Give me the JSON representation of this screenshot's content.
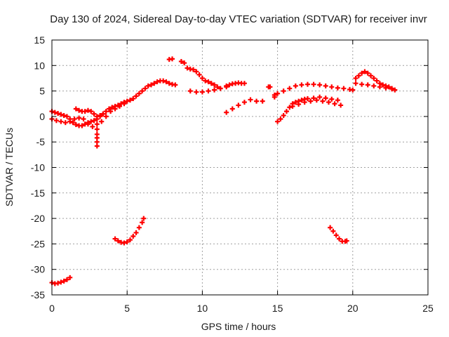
{
  "chart_data": {
    "type": "scatter",
    "title": "Day 130 of 2024, Sidereal Day-to-day VTEC variation (SDTVAR) for receiver invr",
    "xlabel": "GPS time / hours",
    "ylabel": "SDTVAR / TECUs",
    "xlim": [
      0,
      25
    ],
    "ylim": [
      -35,
      15
    ],
    "xticks": [
      0,
      5,
      10,
      15,
      20,
      25
    ],
    "yticks": [
      15,
      10,
      5,
      0,
      -5,
      -10,
      -15,
      -20,
      -25,
      -30,
      -35
    ],
    "grid": true,
    "marker": "+",
    "color": "#ff0000",
    "series": [
      {
        "name": "SDTVAR",
        "x": [
          0.0,
          0.2,
          0.4,
          0.6,
          0.8,
          1.0,
          1.2,
          1.4,
          1.6,
          1.8,
          2.0,
          2.2,
          2.4,
          2.6,
          2.8,
          3.0,
          3.2,
          3.4,
          3.6,
          3.8,
          4.0,
          4.2,
          4.4,
          4.6,
          4.8,
          5.0,
          5.2,
          5.4,
          5.6,
          5.8,
          6.0,
          6.2,
          6.4,
          6.6,
          6.8,
          7.0,
          7.2,
          7.4,
          7.6,
          7.8,
          8.0,
          8.2,
          0.0,
          0.3,
          0.6,
          0.9,
          1.2,
          1.5,
          1.8,
          2.1,
          2.4,
          2.7,
          3.0,
          3.3,
          3.6,
          3.9,
          4.2,
          4.5,
          4.8,
          1.6,
          1.8,
          2.0,
          2.2,
          2.4,
          2.6,
          2.8,
          3.0,
          3.2,
          3.4,
          3.0,
          3.0,
          3.0,
          3.0,
          3.0,
          7.8,
          8.0,
          8.6,
          8.8,
          9.0,
          9.2,
          9.4,
          9.6,
          9.8,
          10.0,
          10.2,
          10.4,
          10.6,
          10.8,
          11.0,
          11.2,
          9.2,
          9.6,
          10.0,
          10.4,
          10.8,
          11.2,
          11.6,
          11.6,
          11.8,
          12.0,
          12.2,
          12.4,
          12.6,
          12.8,
          11.6,
          12.0,
          12.4,
          12.8,
          13.2,
          13.6,
          14.0,
          14.4,
          14.5,
          14.8,
          14.8,
          15.0,
          15.0,
          15.2,
          15.4,
          15.6,
          15.8,
          16.0,
          16.2,
          16.4,
          16.6,
          16.8,
          17.0,
          17.4,
          17.8,
          18.2,
          18.6,
          19.0,
          15.4,
          15.8,
          16.2,
          16.6,
          17.0,
          17.4,
          17.8,
          18.2,
          18.6,
          19.0,
          19.4,
          19.8,
          20.0,
          16.0,
          16.4,
          16.8,
          17.2,
          17.6,
          18.0,
          18.4,
          18.8,
          19.2,
          20.2,
          20.4,
          20.6,
          20.8,
          21.0,
          21.2,
          21.4,
          21.6,
          21.8,
          22.0,
          22.2,
          22.4,
          22.6,
          22.8,
          20.2,
          20.6,
          21.0,
          21.4,
          21.8,
          22.2,
          22.6,
          0.0,
          0.2,
          0.4,
          0.6,
          0.8,
          1.0,
          1.2,
          4.2,
          4.4,
          4.6,
          4.8,
          5.0,
          5.2,
          5.4,
          5.6,
          5.8,
          6.0,
          6.1,
          18.5,
          18.7,
          18.9,
          19.1,
          19.3,
          19.5,
          19.6
        ],
        "y": [
          1.0,
          0.8,
          0.6,
          0.4,
          0.2,
          0.0,
          -0.5,
          -1.2,
          -1.6,
          -1.8,
          -1.8,
          -1.5,
          -1.2,
          -1.0,
          -0.8,
          -0.5,
          0.0,
          0.5,
          1.0,
          1.5,
          1.8,
          2.0,
          2.2,
          2.5,
          2.8,
          3.0,
          3.2,
          3.5,
          4.0,
          4.5,
          5.0,
          5.5,
          6.0,
          6.2,
          6.5,
          6.8,
          7.0,
          7.0,
          6.8,
          6.5,
          6.3,
          6.2,
          -0.5,
          -0.8,
          -1.0,
          -1.2,
          -1.0,
          -0.5,
          -0.3,
          -0.5,
          -1.5,
          -2.0,
          -1.5,
          -1.0,
          0.0,
          1.0,
          1.5,
          2.0,
          2.5,
          1.5,
          1.2,
          1.0,
          1.0,
          1.2,
          1.0,
          0.5,
          0.0,
          0.2,
          0.5,
          -2.5,
          -3.5,
          -4.2,
          -5.0,
          -5.8,
          11.2,
          11.3,
          10.8,
          10.5,
          9.5,
          9.3,
          9.2,
          8.8,
          8.2,
          7.5,
          7.0,
          6.8,
          6.5,
          6.2,
          5.8,
          5.5,
          5.0,
          4.8,
          4.8,
          5.0,
          5.2,
          5.5,
          5.8,
          6.0,
          6.2,
          6.4,
          6.5,
          6.6,
          6.5,
          6.5,
          0.8,
          1.5,
          2.2,
          2.8,
          3.3,
          3.0,
          3.0,
          5.8,
          5.8,
          4.2,
          3.8,
          4.5,
          -1.0,
          -0.5,
          0.2,
          1.0,
          1.8,
          2.5,
          2.8,
          3.0,
          3.2,
          3.4,
          3.5,
          3.6,
          3.8,
          3.6,
          3.4,
          3.2,
          5.0,
          5.5,
          6.0,
          6.2,
          6.3,
          6.3,
          6.2,
          6.0,
          5.8,
          5.6,
          5.5,
          5.3,
          5.2,
          2.0,
          2.4,
          2.8,
          3.0,
          3.2,
          3.0,
          2.8,
          2.5,
          2.2,
          7.5,
          8.0,
          8.5,
          8.8,
          8.5,
          8.0,
          7.5,
          7.0,
          6.5,
          6.2,
          6.0,
          5.8,
          5.5,
          5.2,
          6.5,
          6.3,
          6.2,
          6.0,
          5.8,
          5.6,
          5.4,
          -32.6,
          -32.8,
          -32.7,
          -32.5,
          -32.3,
          -32.0,
          -31.6,
          -24.0,
          -24.4,
          -24.7,
          -24.8,
          -24.6,
          -24.2,
          -23.5,
          -22.8,
          -21.8,
          -20.8,
          -20.0,
          -21.8,
          -22.5,
          -23.3,
          -24.0,
          -24.5,
          -24.5,
          -24.4
        ]
      }
    ]
  }
}
